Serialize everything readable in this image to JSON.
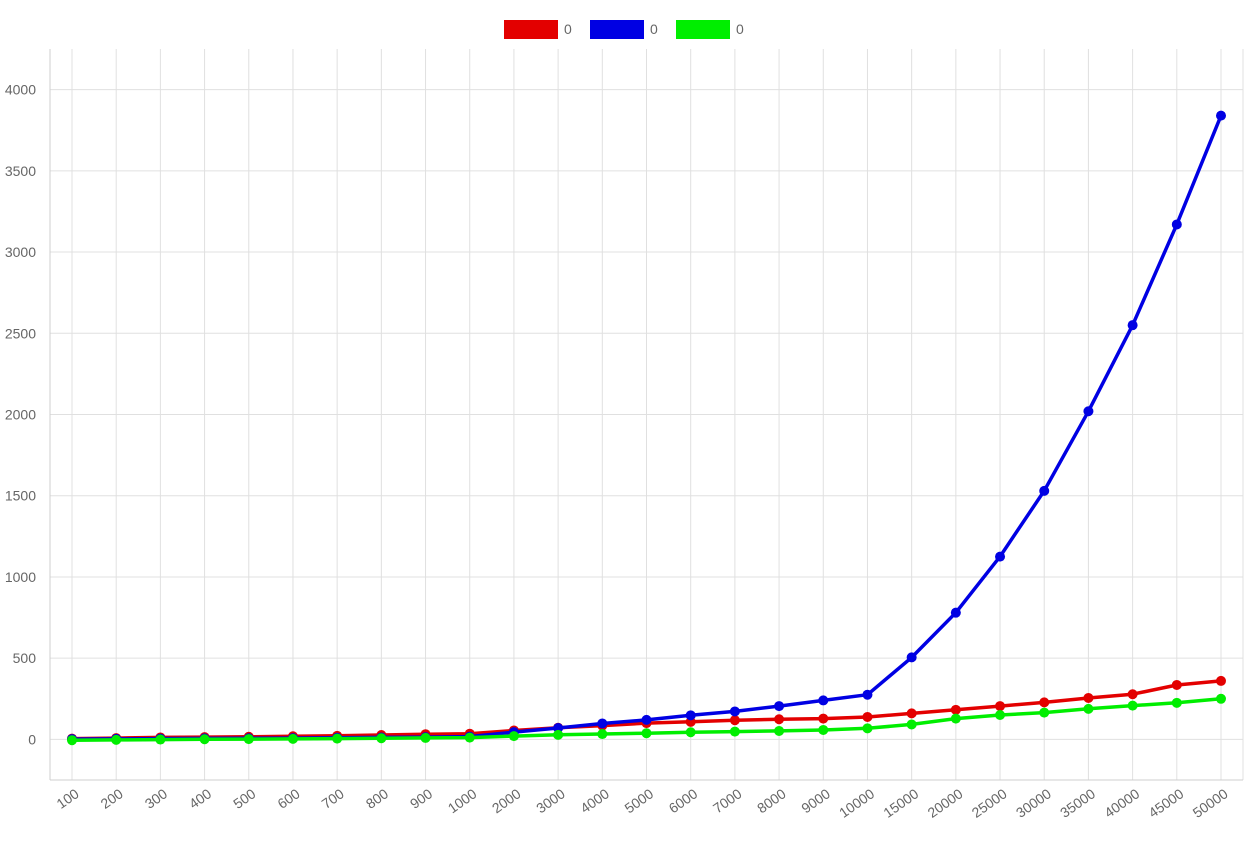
{
  "chart_data": {
    "type": "line",
    "categories": [
      "100",
      "200",
      "300",
      "400",
      "500",
      "600",
      "700",
      "800",
      "900",
      "1000",
      "2000",
      "3000",
      "4000",
      "5000",
      "6000",
      "7000",
      "8000",
      "9000",
      "10000",
      "15000",
      "20000",
      "25000",
      "30000",
      "35000",
      "40000",
      "45000",
      "50000"
    ],
    "series": [
      {
        "name": "0",
        "color": "#e30000",
        "values": [
          5,
          8,
          12,
          14,
          16,
          19,
          22,
          27,
          32,
          35,
          55,
          72,
          85,
          100,
          108,
          118,
          124,
          128,
          138,
          160,
          182,
          205,
          228,
          255,
          278,
          335,
          360
        ]
      },
      {
        "name": "0",
        "color": "#0000e3",
        "values": [
          2,
          3,
          5,
          6,
          7,
          8,
          10,
          12,
          14,
          17,
          45,
          70,
          98,
          120,
          148,
          172,
          205,
          240,
          275,
          505,
          780,
          1125,
          1530,
          2020,
          2550,
          3170,
          3840
        ]
      },
      {
        "name": "0",
        "color": "#00ee00",
        "values": [
          -5,
          -3,
          -1,
          1,
          2,
          3,
          5,
          7,
          9,
          11,
          20,
          28,
          33,
          38,
          44,
          48,
          52,
          58,
          68,
          92,
          128,
          150,
          165,
          188,
          208,
          225,
          250
        ]
      }
    ],
    "ylim": [
      -250,
      4250
    ],
    "yticks": [
      0,
      500,
      1000,
      1500,
      2000,
      2500,
      3000,
      3500,
      4000
    ],
    "grid": true,
    "legend_position": "top"
  }
}
